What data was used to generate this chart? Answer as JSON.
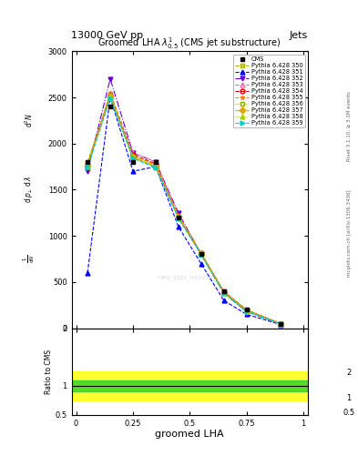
{
  "title_top": "13000 GeV pp",
  "title_right": "Jets",
  "plot_title": "Groomed LHA $\\lambda^{1}_{0.5}$ (CMS jet substructure)",
  "xlabel": "groomed LHA",
  "ylabel_ratio": "Ratio to CMS",
  "right_label1": "Rivet 3.1.10, ≥ 3.1M events",
  "right_label2": "mcplots.cern.ch [arXiv:1306.3436]",
  "watermark": "CMS_2021_H192010...",
  "x_values": [
    0.05,
    0.15,
    0.25,
    0.35,
    0.45,
    0.55,
    0.65,
    0.75,
    0.9
  ],
  "cms_y": [
    1800,
    2400,
    1800,
    1800,
    1200,
    800,
    400,
    200,
    50
  ],
  "cms_marker": "s",
  "cms_color": "#000000",
  "series": [
    {
      "label": "Pythia 6.428 350",
      "color": "#aaaa00",
      "linestyle": "--",
      "marker": "s",
      "markerfacecolor": "none",
      "y": [
        1800,
        2500,
        1850,
        1750,
        1200,
        800,
        400,
        200,
        50
      ]
    },
    {
      "label": "Pythia 6.428 351",
      "color": "#0000ff",
      "linestyle": "--",
      "marker": "^",
      "markerfacecolor": "#0000ff",
      "y": [
        600,
        2500,
        1700,
        1750,
        1100,
        700,
        300,
        150,
        40
      ]
    },
    {
      "label": "Pythia 6.428 352",
      "color": "#6600cc",
      "linestyle": "-.",
      "marker": "v",
      "markerfacecolor": "#6600cc",
      "y": [
        1700,
        2700,
        1900,
        1800,
        1250,
        800,
        380,
        180,
        45
      ]
    },
    {
      "label": "Pythia 6.428 353",
      "color": "#ff66aa",
      "linestyle": "--",
      "marker": "^",
      "markerfacecolor": "none",
      "y": [
        1750,
        2550,
        1900,
        1800,
        1220,
        810,
        390,
        190,
        48
      ]
    },
    {
      "label": "Pythia 6.428 354",
      "color": "#cc0000",
      "linestyle": "--",
      "marker": "o",
      "markerfacecolor": "none",
      "y": [
        1760,
        2520,
        1880,
        1780,
        1210,
        810,
        395,
        195,
        49
      ]
    },
    {
      "label": "Pythia 6.428 355",
      "color": "#ff8800",
      "linestyle": "--",
      "marker": "*",
      "markerfacecolor": "#ff8800",
      "y": [
        1780,
        2530,
        1870,
        1770,
        1215,
        815,
        392,
        192,
        49
      ]
    },
    {
      "label": "Pythia 6.428 356",
      "color": "#88aa00",
      "linestyle": ":",
      "marker": "s",
      "markerfacecolor": "none",
      "y": [
        1770,
        2540,
        1860,
        1760,
        1205,
        810,
        390,
        190,
        48
      ]
    },
    {
      "label": "Pythia 6.428 357",
      "color": "#ddaa00",
      "linestyle": "-.",
      "marker": "D",
      "markerfacecolor": "#ddaa00",
      "y": [
        1760,
        2510,
        1850,
        1750,
        1200,
        805,
        388,
        188,
        47
      ]
    },
    {
      "label": "Pythia 6.428 358",
      "color": "#aacc00",
      "linestyle": ":",
      "marker": "^",
      "markerfacecolor": "#aacc00",
      "y": [
        1750,
        2500,
        1845,
        1745,
        1195,
        802,
        385,
        185,
        47
      ]
    },
    {
      "label": "Pythia 6.428 359",
      "color": "#00cccc",
      "linestyle": "--",
      "marker": ">",
      "markerfacecolor": "#00cccc",
      "y": [
        1740,
        2490,
        1840,
        1740,
        1190,
        798,
        382,
        182,
        46
      ]
    }
  ],
  "ratio_band_yellow": [
    0.75,
    1.25
  ],
  "ratio_band_green": [
    0.9,
    1.1
  ],
  "ylim_main": [
    0,
    3000
  ],
  "ylim_ratio": [
    0.5,
    2.0
  ],
  "yticks_main": [
    0,
    500,
    1000,
    1500,
    2000,
    2500,
    3000
  ],
  "xticks": [
    0.0,
    0.25,
    0.5,
    0.75,
    1.0
  ],
  "xlim": [
    0.0,
    1.0
  ]
}
